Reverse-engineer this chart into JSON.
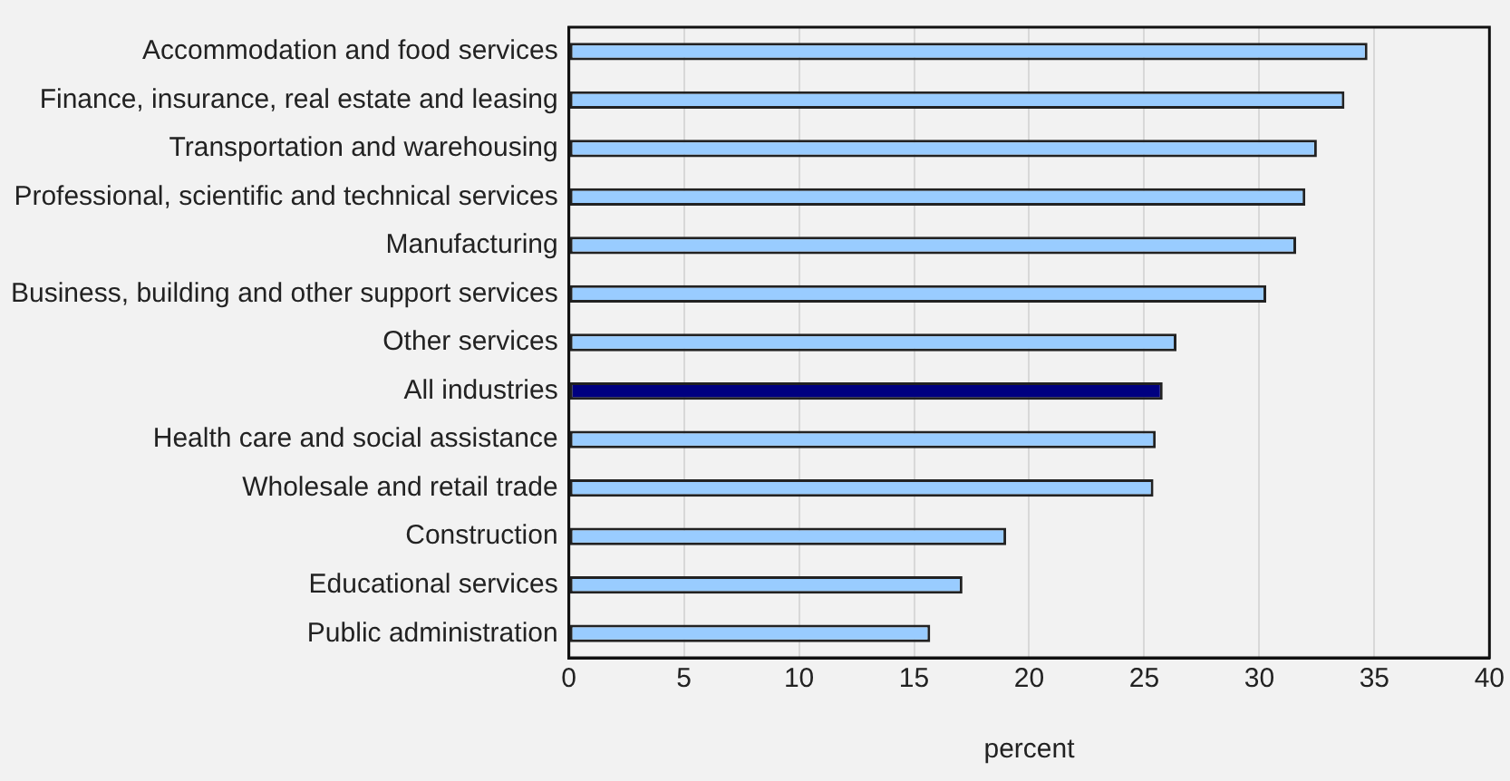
{
  "chart_data": {
    "type": "bar",
    "orientation": "horizontal",
    "xlabel": "percent",
    "categories": [
      "Accommodation and food services",
      "Finance, insurance, real estate and leasing",
      "Transportation and warehousing",
      "Professional, scientific and technical services",
      "Manufacturing",
      "Business, building and other support services",
      "Other services",
      "All industries",
      "Health care and social assistance",
      "Wholesale and retail trade",
      "Construction",
      "Educational services",
      "Public administration"
    ],
    "values": [
      34.7,
      33.7,
      32.5,
      32.0,
      31.6,
      30.3,
      26.4,
      25.8,
      25.5,
      25.4,
      19.0,
      17.1,
      15.7
    ],
    "colors": [
      "#99ccff",
      "#99ccff",
      "#99ccff",
      "#99ccff",
      "#99ccff",
      "#99ccff",
      "#99ccff",
      "#000080",
      "#99ccff",
      "#99ccff",
      "#99ccff",
      "#99ccff",
      "#99ccff"
    ],
    "xlim": [
      0,
      40
    ],
    "xticks": [
      0,
      5,
      10,
      15,
      20,
      25,
      30,
      35,
      40
    ],
    "grid": "x",
    "legend": false
  }
}
